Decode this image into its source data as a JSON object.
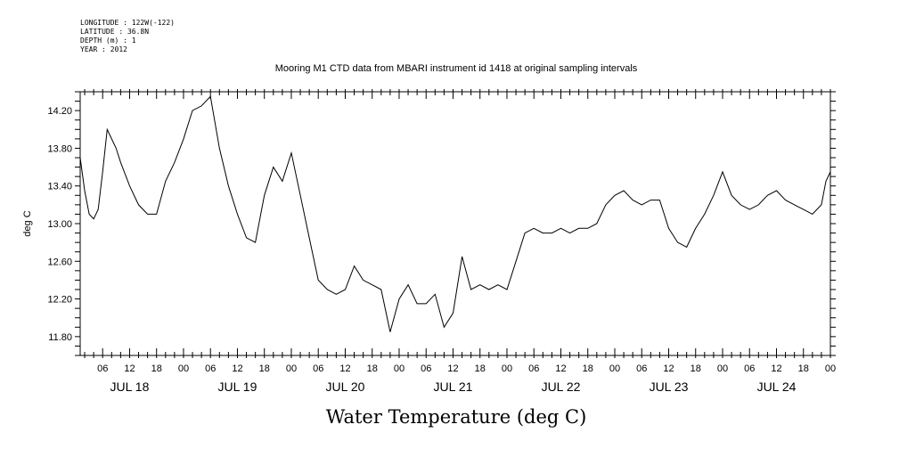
{
  "header_info": {
    "longitude": "LONGITUDE : 122W(-122)",
    "latitude": "LATITUDE : 36.8N",
    "depth": "DEPTH (m) : 1",
    "year": "YEAR : 2012"
  },
  "chart_data": {
    "type": "line",
    "plot_title": "Mooring M1 CTD data from MBARI instrument id 1418 at original sampling intervals",
    "title": "Water Temperature (deg C)",
    "ylabel": "deg C",
    "xlabel": "",
    "ylim": [
      11.6,
      14.4
    ],
    "xlim": [
      1.0,
      168.0
    ],
    "yticks": [
      "11.80",
      "12.20",
      "12.60",
      "13.00",
      "13.40",
      "13.80",
      "14.20"
    ],
    "hour_labels": [
      "06",
      "12",
      "18",
      "00",
      "06",
      "12",
      "18",
      "00",
      "06",
      "12",
      "18",
      "00",
      "06",
      "12",
      "18",
      "00",
      "06",
      "12",
      "18",
      "00",
      "06",
      "12",
      "18",
      "00",
      "06",
      "12",
      "18",
      "00"
    ],
    "day_labels": [
      "JUL 18",
      "JUL 19",
      "JUL 20",
      "JUL 21",
      "JUL 22",
      "JUL 23",
      "JUL 24"
    ],
    "x_unit": "hours since JUL 18 00:00",
    "x": [
      1,
      2,
      3,
      4,
      5,
      6,
      7,
      8,
      9,
      10,
      12,
      14,
      16,
      18,
      20,
      22,
      24,
      26,
      28,
      30,
      32,
      34,
      36,
      38,
      40,
      42,
      44,
      46,
      48,
      50,
      52,
      54,
      56,
      58,
      60,
      62,
      64,
      66,
      68,
      70,
      72,
      74,
      76,
      78,
      80,
      82,
      84,
      86,
      88,
      90,
      92,
      94,
      96,
      98,
      100,
      102,
      104,
      106,
      108,
      110,
      112,
      114,
      116,
      118,
      120,
      122,
      124,
      126,
      128,
      130,
      132,
      134,
      136,
      138,
      140,
      142,
      144,
      146,
      148,
      150,
      152,
      154,
      156,
      158,
      160,
      162,
      164,
      166,
      167,
      168
    ],
    "y": [
      13.7,
      13.35,
      13.1,
      13.05,
      13.15,
      13.55,
      14.0,
      13.9,
      13.8,
      13.65,
      13.4,
      13.2,
      13.1,
      13.1,
      13.45,
      13.65,
      13.9,
      14.2,
      14.25,
      14.35,
      13.8,
      13.4,
      13.1,
      12.85,
      12.8,
      13.3,
      13.6,
      13.45,
      13.75,
      13.3,
      12.85,
      12.4,
      12.3,
      12.25,
      12.3,
      12.55,
      12.4,
      12.35,
      12.3,
      11.85,
      12.2,
      12.35,
      12.15,
      12.15,
      12.25,
      11.9,
      12.05,
      12.65,
      12.3,
      12.35,
      12.3,
      12.35,
      12.3,
      12.6,
      12.9,
      12.95,
      12.9,
      12.9,
      12.95,
      12.9,
      12.95,
      12.95,
      13.0,
      13.2,
      13.3,
      13.35,
      13.25,
      13.2,
      13.25,
      13.25,
      12.95,
      12.8,
      12.75,
      12.95,
      13.1,
      13.3,
      13.55,
      13.3,
      13.2,
      13.15,
      13.2,
      13.3,
      13.35,
      13.25,
      13.2,
      13.15,
      13.1,
      13.2,
      13.45,
      13.55
    ]
  }
}
